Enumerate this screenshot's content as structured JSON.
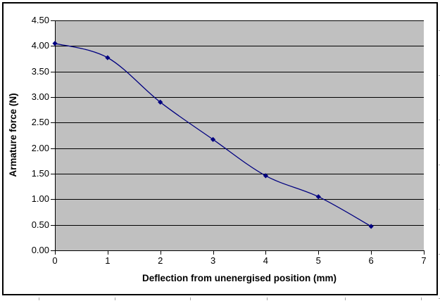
{
  "chart_data": {
    "type": "line",
    "title": "",
    "xlabel": "Deflection from unenergised position (mm)",
    "ylabel": "Armature force (N)",
    "x": [
      0,
      1,
      2,
      3,
      4,
      5,
      6
    ],
    "series": [
      {
        "name": "Armature force",
        "values": [
          4.05,
          3.77,
          2.9,
          2.17,
          1.46,
          1.05,
          0.47
        ]
      }
    ],
    "xlim": [
      0,
      7
    ],
    "ylim": [
      0,
      4.5
    ],
    "x_tick_labels": [
      "0",
      "1",
      "2",
      "3",
      "4",
      "5",
      "6",
      "7"
    ],
    "y_tick_labels": [
      "0.00",
      "0.50",
      "1.00",
      "1.50",
      "2.00",
      "2.50",
      "3.00",
      "3.50",
      "4.00",
      "4.50"
    ],
    "grid": "horizontal",
    "legend": "none",
    "line_style": "smoothed",
    "marker": "diamond",
    "colors": {
      "line": "#000080",
      "marker": "#000080",
      "plot_bg": "#c0c0c0",
      "chart_bg": "#ffffff",
      "gridline": "#000000",
      "axis": "#000000",
      "border": "#000000",
      "text": "#000000",
      "edge_artifact": "#a6a6a6"
    }
  }
}
